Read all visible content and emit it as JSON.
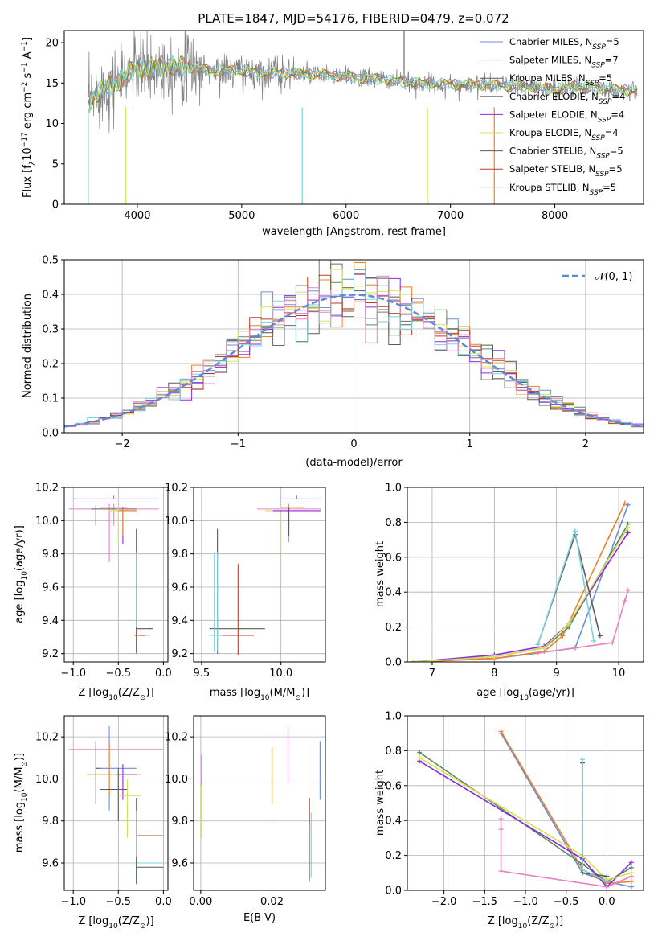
{
  "figure": {
    "title": "PLATE=1847, MJD=54176, FIBERID=0479, z=0.072"
  },
  "colors": {
    "chabrier_miles": "#6a8fd6",
    "salpeter_miles": "#e683bc",
    "kroupa_miles": "#5b5b5b",
    "chabrier_elodie": "#6b6b6b",
    "salpeter_elodie": "#8a2be2",
    "kroupa_elodie": "#d4e157",
    "chabrier_stelib": "#5a5a5a",
    "salpeter_stelib": "#c0392b",
    "kroupa_stelib": "#7fd1dc",
    "orange": "#f07f2a",
    "green": "#5a8a5a",
    "normal_curve": "#5b8bd6"
  },
  "chart_data": [
    {
      "type": "line",
      "title": "PLATE=1847, MJD=54176, FIBERID=0479, z=0.072",
      "xlabel": "wavelength [Angstrom, rest frame]",
      "ylabel": "Flux [f",
      "ylabel_math": "λ",
      "ylabel_rest": "10",
      "ylabel_exp": "−17",
      "ylabel_tail": " erg cm",
      "ylabel_exp2": "−2",
      "ylabel_tail2": " s",
      "ylabel_exp3": "−1",
      "ylabel_tail3": " A",
      "ylabel_exp4": "−1",
      "ylabel_end": "]",
      "xlim": [
        3300,
        8850
      ],
      "ylim": [
        0,
        21.5
      ],
      "xticks": [
        4000,
        5000,
        6000,
        7000,
        8000
      ],
      "yticks": [
        0,
        5,
        10,
        15,
        20
      ],
      "legend_location": "top-right",
      "legend": [
        {
          "label": "Chabrier MILES, N",
          "sub": "SSP",
          "tail": "=5",
          "color": "#6a8fd6"
        },
        {
          "label": "Salpeter MILES, N",
          "sub": "SSP",
          "tail": "=7",
          "color": "#e683bc"
        },
        {
          "label": "Kroupa MILES, N",
          "sub": "SSP",
          "tail": "=5",
          "color": "#5b5b5b"
        },
        {
          "label": "Chabrier ELODIE, N",
          "sub": "SSP",
          "tail": "=4",
          "color": "#6b6b6b"
        },
        {
          "label": "Salpeter ELODIE, N",
          "sub": "SSP",
          "tail": "=4",
          "color": "#8a2be2"
        },
        {
          "label": "Kroupa ELODIE, N",
          "sub": "SSP",
          "tail": "=4",
          "color": "#d4e157"
        },
        {
          "label": "Chabrier STELIB, N",
          "sub": "SSP",
          "tail": "=5",
          "color": "#5a5a5a"
        },
        {
          "label": "Salpeter STELIB, N",
          "sub": "SSP",
          "tail": "=5",
          "color": "#c0392b"
        },
        {
          "label": "Kroupa STELIB, N",
          "sub": "SSP",
          "tail": "=5",
          "color": "#7fd1dc"
        }
      ],
      "spectrum_anchors": {
        "x": [
          3530,
          3600,
          3700,
          3800,
          3900,
          4000,
          4100,
          4200,
          4300,
          4500,
          4700,
          5000,
          5200,
          5500,
          5800,
          6000,
          6300,
          6500,
          6700,
          7000,
          7300,
          7600,
          7800,
          8000,
          8200,
          8400,
          8600,
          8800
        ],
        "y": [
          12.5,
          13.5,
          14.5,
          15.0,
          16.0,
          17.0,
          16.5,
          17.0,
          17.2,
          17.0,
          16.5,
          16.5,
          16.3,
          16.2,
          16.0,
          15.8,
          15.5,
          15.2,
          15.0,
          14.8,
          14.8,
          14.6,
          14.5,
          14.2,
          14.6,
          14.4,
          14.2,
          14.0
        ]
      },
      "absorption_lines": [
        {
          "x": 3530,
          "y": 0.0
        },
        {
          "x": 3890,
          "y": 0.0
        },
        {
          "x": 5580,
          "y": 0.0
        },
        {
          "x": 6780,
          "y": 0.0
        },
        {
          "x": 7420,
          "y": 0.0
        }
      ]
    },
    {
      "type": "line",
      "xlabel": "(data-model)/error",
      "ylabel": "Normed distribution",
      "xlim": [
        -2.5,
        2.5
      ],
      "ylim": [
        0,
        0.5
      ],
      "xticks": [
        -2,
        -1,
        0,
        1,
        2
      ],
      "yticks": [
        0.0,
        0.1,
        0.2,
        0.3,
        0.4,
        0.5
      ],
      "legend_location": "top-right",
      "legend_label": "𝒩(0, 1)",
      "bin_edges_start": -2.5,
      "bin_width": 0.1,
      "gaussian": {
        "mean": 0,
        "sigma": 1
      }
    },
    {
      "type": "scatter",
      "xlabel": "Z [log",
      "xlabel_sub": "10",
      "xlabel_tail": "(Z/Z",
      "xlabel_sub2": "⊙",
      "xlabel_end": ")]",
      "ylabel": "age  [log",
      "ylabel_sub": "10",
      "ylabel_tail": "(age/yr)]",
      "xlim": [
        -1.1,
        0.05
      ],
      "ylim": [
        9.15,
        10.2
      ],
      "xticks": [
        -1.0,
        -0.5,
        0.0
      ],
      "yticks": [
        9.2,
        9.4,
        9.6,
        9.8,
        10.0,
        10.2
      ]
    },
    {
      "type": "scatter",
      "xlabel": "mass [log",
      "xlabel_sub": "10",
      "xlabel_tail": "(M/M",
      "xlabel_sub2": "⊙",
      "xlabel_end": ")]",
      "xlim": [
        9.45,
        10.28
      ],
      "ylim": [
        9.15,
        10.2
      ],
      "xticks": [
        9.5,
        10.0
      ],
      "yticks": [
        9.2,
        9.4,
        9.6,
        9.8,
        10.0,
        10.2
      ]
    },
    {
      "type": "line",
      "xlabel": "age  [log",
      "xlabel_sub": "10",
      "xlabel_tail": "(age/yr)]",
      "ylabel": "mass weight",
      "xlim": [
        6.6,
        10.4
      ],
      "ylim": [
        0,
        1.0
      ],
      "xticks": [
        7,
        8,
        9,
        10
      ],
      "yticks": [
        0.0,
        0.2,
        0.4,
        0.6,
        0.8,
        1.0
      ]
    },
    {
      "type": "scatter",
      "xlabel": "Z [log",
      "xlabel_sub": "10",
      "xlabel_tail": "(Z/Z",
      "xlabel_sub2": "⊙",
      "xlabel_end": ")]",
      "ylabel": "mass [log",
      "ylabel_sub": "10",
      "ylabel_tail": "(M/M",
      "ylabel_sub2": "⊙",
      "ylabel_end": ")]",
      "xlim": [
        -1.1,
        0.05
      ],
      "ylim": [
        9.47,
        10.3
      ],
      "xticks": [
        -1.0,
        -0.5,
        0.0
      ],
      "yticks": [
        9.6,
        9.8,
        10.0,
        10.2
      ]
    },
    {
      "type": "scatter",
      "xlabel": "E(B-V)",
      "xlim": [
        -0.002,
        0.035
      ],
      "ylim": [
        9.47,
        10.3
      ],
      "xticks": [
        0.0,
        0.02
      ],
      "xticklabels": [
        "0.00",
        "0.02"
      ],
      "yticks": [
        9.6,
        9.8,
        10.0,
        10.2
      ]
    },
    {
      "type": "line",
      "xlabel": "Z [log",
      "xlabel_sub": "10",
      "xlabel_tail": "(Z/Z",
      "xlabel_sub2": "⊙",
      "xlabel_end": ")]",
      "ylabel": "mass weight",
      "xlim": [
        -2.45,
        0.45
      ],
      "ylim": [
        0,
        1.0
      ],
      "xticks": [
        -2.0,
        -1.5,
        -1.0,
        -0.5,
        0.0
      ],
      "yticks": [
        0.0,
        0.2,
        0.4,
        0.6,
        0.8,
        1.0
      ]
    }
  ]
}
